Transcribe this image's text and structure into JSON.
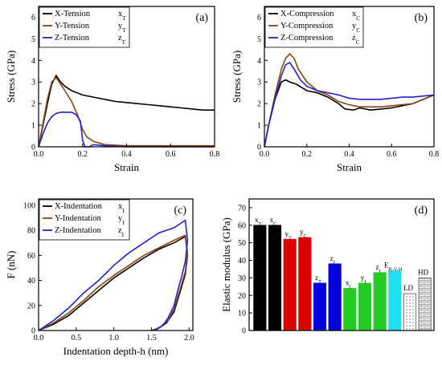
{
  "chart_data": [
    {
      "type": "line",
      "panel_label": "(a)",
      "xlabel": "Strain",
      "ylabel": "Stress (GPa)",
      "xlim": [
        0,
        0.8
      ],
      "ylim": [
        0,
        6.5
      ],
      "xticks": [
        "0.0",
        "0.2",
        "0.4",
        "0.6",
        "0.8"
      ],
      "yticks": [
        "0",
        "1",
        "2",
        "3",
        "4",
        "5",
        "6"
      ],
      "legend_placement": "top-left",
      "series": [
        {
          "name": "X-Tension",
          "tag": "x",
          "sub": "T",
          "color": "#000000",
          "x": [
            0,
            0.02,
            0.04,
            0.06,
            0.08,
            0.1,
            0.12,
            0.15,
            0.2,
            0.25,
            0.3,
            0.35,
            0.4,
            0.45,
            0.5,
            0.55,
            0.6,
            0.65,
            0.7,
            0.75,
            0.8
          ],
          "y": [
            0,
            1.0,
            2.0,
            2.9,
            3.3,
            3.0,
            2.8,
            2.6,
            2.4,
            2.3,
            2.2,
            2.1,
            2.05,
            2.0,
            1.95,
            1.9,
            1.85,
            1.8,
            1.75,
            1.7,
            1.7
          ]
        },
        {
          "name": "Y-Tension",
          "tag": "y",
          "sub": "T",
          "color": "#8B4513",
          "x": [
            0,
            0.02,
            0.04,
            0.06,
            0.08,
            0.1,
            0.12,
            0.15,
            0.18,
            0.2,
            0.22,
            0.25,
            0.3,
            0.4,
            0.5,
            0.6,
            0.7,
            0.8
          ],
          "y": [
            0,
            1.1,
            2.2,
            3.0,
            3.2,
            2.9,
            2.6,
            2.1,
            1.4,
            0.8,
            0.45,
            0.25,
            0.1,
            0.05,
            0.05,
            0.05,
            0.05,
            0.05
          ]
        },
        {
          "name": "Z-Tension",
          "tag": "z",
          "sub": "T",
          "color": "#2222CC",
          "x": [
            0,
            0.02,
            0.04,
            0.06,
            0.08,
            0.1,
            0.12,
            0.15,
            0.17,
            0.19,
            0.2,
            0.21,
            0.23,
            0.25,
            0.3,
            0.4,
            0.5,
            0.6,
            0.7,
            0.8
          ],
          "y": [
            0,
            0.6,
            1.1,
            1.4,
            1.55,
            1.6,
            1.6,
            1.6,
            1.5,
            1.2,
            0.3,
            -0.3,
            0.0,
            0.1,
            0.05,
            0.0,
            0.0,
            0.0,
            0.0,
            0.0
          ]
        }
      ]
    },
    {
      "type": "line",
      "panel_label": "(b)",
      "xlabel": "Strain",
      "ylabel": "Stress (GPa)",
      "xlim": [
        0,
        0.8
      ],
      "ylim": [
        0,
        6.5
      ],
      "xticks": [
        "0.0",
        "0.2",
        "0.4",
        "0.6",
        "0.8"
      ],
      "yticks": [
        "0",
        "1",
        "2",
        "3",
        "4",
        "5",
        "6"
      ],
      "legend_placement": "top-left",
      "series": [
        {
          "name": "X-Compression",
          "tag": "x",
          "sub": "C",
          "color": "#000000",
          "x": [
            0,
            0.02,
            0.05,
            0.08,
            0.1,
            0.12,
            0.15,
            0.2,
            0.25,
            0.3,
            0.35,
            0.38,
            0.42,
            0.45,
            0.5,
            0.55,
            0.6,
            0.65,
            0.7,
            0.75,
            0.8
          ],
          "y": [
            0,
            1.0,
            2.2,
            3.0,
            3.1,
            3.0,
            2.9,
            2.6,
            2.5,
            2.3,
            2.0,
            1.75,
            1.7,
            1.8,
            1.7,
            1.75,
            1.8,
            1.9,
            2.0,
            2.2,
            2.4
          ]
        },
        {
          "name": "Y-Compression",
          "tag": "y",
          "sub": "C",
          "color": "#8B4513",
          "x": [
            0,
            0.02,
            0.05,
            0.08,
            0.1,
            0.12,
            0.14,
            0.16,
            0.2,
            0.25,
            0.3,
            0.35,
            0.4,
            0.45,
            0.5,
            0.55,
            0.6,
            0.65,
            0.7,
            0.75,
            0.8
          ],
          "y": [
            0,
            1.0,
            2.4,
            3.6,
            4.1,
            4.3,
            4.1,
            3.6,
            3.0,
            2.6,
            2.4,
            2.1,
            1.95,
            1.85,
            1.85,
            1.85,
            1.9,
            1.95,
            2.0,
            2.2,
            2.4
          ]
        },
        {
          "name": "Z-Compression",
          "tag": "z",
          "sub": "C",
          "color": "#2222CC",
          "x": [
            0,
            0.02,
            0.05,
            0.08,
            0.1,
            0.12,
            0.14,
            0.17,
            0.2,
            0.25,
            0.3,
            0.35,
            0.4,
            0.45,
            0.5,
            0.55,
            0.6,
            0.65,
            0.7,
            0.75,
            0.8
          ],
          "y": [
            0,
            1.0,
            2.2,
            3.3,
            3.8,
            3.9,
            3.6,
            3.1,
            2.8,
            2.6,
            2.5,
            2.4,
            2.25,
            2.2,
            2.2,
            2.2,
            2.25,
            2.3,
            2.3,
            2.35,
            2.4
          ]
        }
      ]
    },
    {
      "type": "line",
      "panel_label": "(c)",
      "xlabel": "Indentation depth-h (nm)",
      "ylabel": "F (nN)",
      "xlim": [
        0,
        2.05
      ],
      "ylim": [
        0,
        105
      ],
      "xticks": [
        "0.0",
        "0.5",
        "1.0",
        "1.5",
        "2.0"
      ],
      "yticks": [
        "0",
        "20",
        "40",
        "60",
        "80",
        "100"
      ],
      "legend_placement": "top-left",
      "series": [
        {
          "name": "X-Indentation",
          "tag": "x",
          "sub": "I",
          "color": "#000000",
          "x": [
            0,
            0.2,
            0.4,
            0.6,
            0.8,
            1.0,
            1.2,
            1.4,
            1.6,
            1.8,
            1.95,
            1.98,
            1.95,
            1.9,
            1.85,
            1.8,
            1.7,
            1.6,
            1.5
          ],
          "y": [
            0,
            5,
            12,
            22,
            32,
            42,
            50,
            58,
            65,
            70,
            75,
            60,
            45,
            35,
            25,
            15,
            6,
            2,
            0
          ]
        },
        {
          "name": "Y-Indentation",
          "tag": "y",
          "sub": "I",
          "color": "#8B4513",
          "x": [
            0,
            0.2,
            0.4,
            0.6,
            0.8,
            1.0,
            1.2,
            1.4,
            1.6,
            1.8,
            1.95,
            1.98,
            1.95,
            1.9,
            1.85,
            1.8,
            1.72,
            1.62,
            1.52
          ],
          "y": [
            0,
            6,
            14,
            24,
            35,
            44,
            52,
            60,
            66,
            72,
            76,
            62,
            47,
            37,
            27,
            17,
            8,
            3,
            0
          ]
        },
        {
          "name": "Z-Indentation",
          "tag": "z",
          "sub": "I",
          "color": "#2222CC",
          "x": [
            0,
            0.2,
            0.4,
            0.6,
            0.8,
            1.0,
            1.2,
            1.4,
            1.6,
            1.8,
            1.95,
            1.98,
            1.95,
            1.9,
            1.85,
            1.8,
            1.72,
            1.65,
            1.55
          ],
          "y": [
            0,
            8,
            18,
            30,
            40,
            52,
            62,
            70,
            78,
            82,
            88,
            72,
            55,
            43,
            32,
            20,
            10,
            4,
            0
          ]
        }
      ]
    },
    {
      "type": "bar",
      "panel_label": "(d)",
      "ylabel": "Elastic modulus (GPa)",
      "ylim": [
        0,
        75
      ],
      "yticks": [
        "0",
        "10",
        "20",
        "30",
        "40",
        "50",
        "60",
        "70"
      ],
      "bars": [
        {
          "tag": "x",
          "sub": "T",
          "value": 60,
          "color": "#000000",
          "pattern": "solid"
        },
        {
          "tag": "x",
          "sub": "C",
          "value": 60,
          "color": "#000000",
          "pattern": "solid"
        },
        {
          "tag": "y",
          "sub": "T",
          "value": 52,
          "color": "#DD0000",
          "pattern": "solid"
        },
        {
          "tag": "y",
          "sub": "C",
          "value": 53,
          "color": "#DD0000",
          "pattern": "solid"
        },
        {
          "tag": "z",
          "sub": "T",
          "value": 27,
          "color": "#0000DD",
          "pattern": "solid"
        },
        {
          "tag": "z",
          "sub": "C",
          "value": 38,
          "color": "#0000DD",
          "pattern": "solid"
        },
        {
          "tag": "x",
          "sub": "I",
          "value": 24,
          "color": "#22CC22",
          "pattern": "solid"
        },
        {
          "tag": "y",
          "sub": "I",
          "value": 27,
          "color": "#22CC22",
          "pattern": "solid"
        },
        {
          "tag": "z",
          "sub": "I",
          "value": 33,
          "color": "#22CC22",
          "pattern": "solid"
        },
        {
          "tag": "E",
          "sub": "R-V-H",
          "value": 34,
          "color": "#22DDEE",
          "pattern": "solid"
        },
        {
          "tag": "LD",
          "sub": "",
          "value": 21,
          "color": "#888888",
          "pattern": "dots"
        },
        {
          "tag": "HD",
          "sub": "",
          "value": 30,
          "color": "#888888",
          "pattern": "bricks"
        }
      ]
    }
  ]
}
